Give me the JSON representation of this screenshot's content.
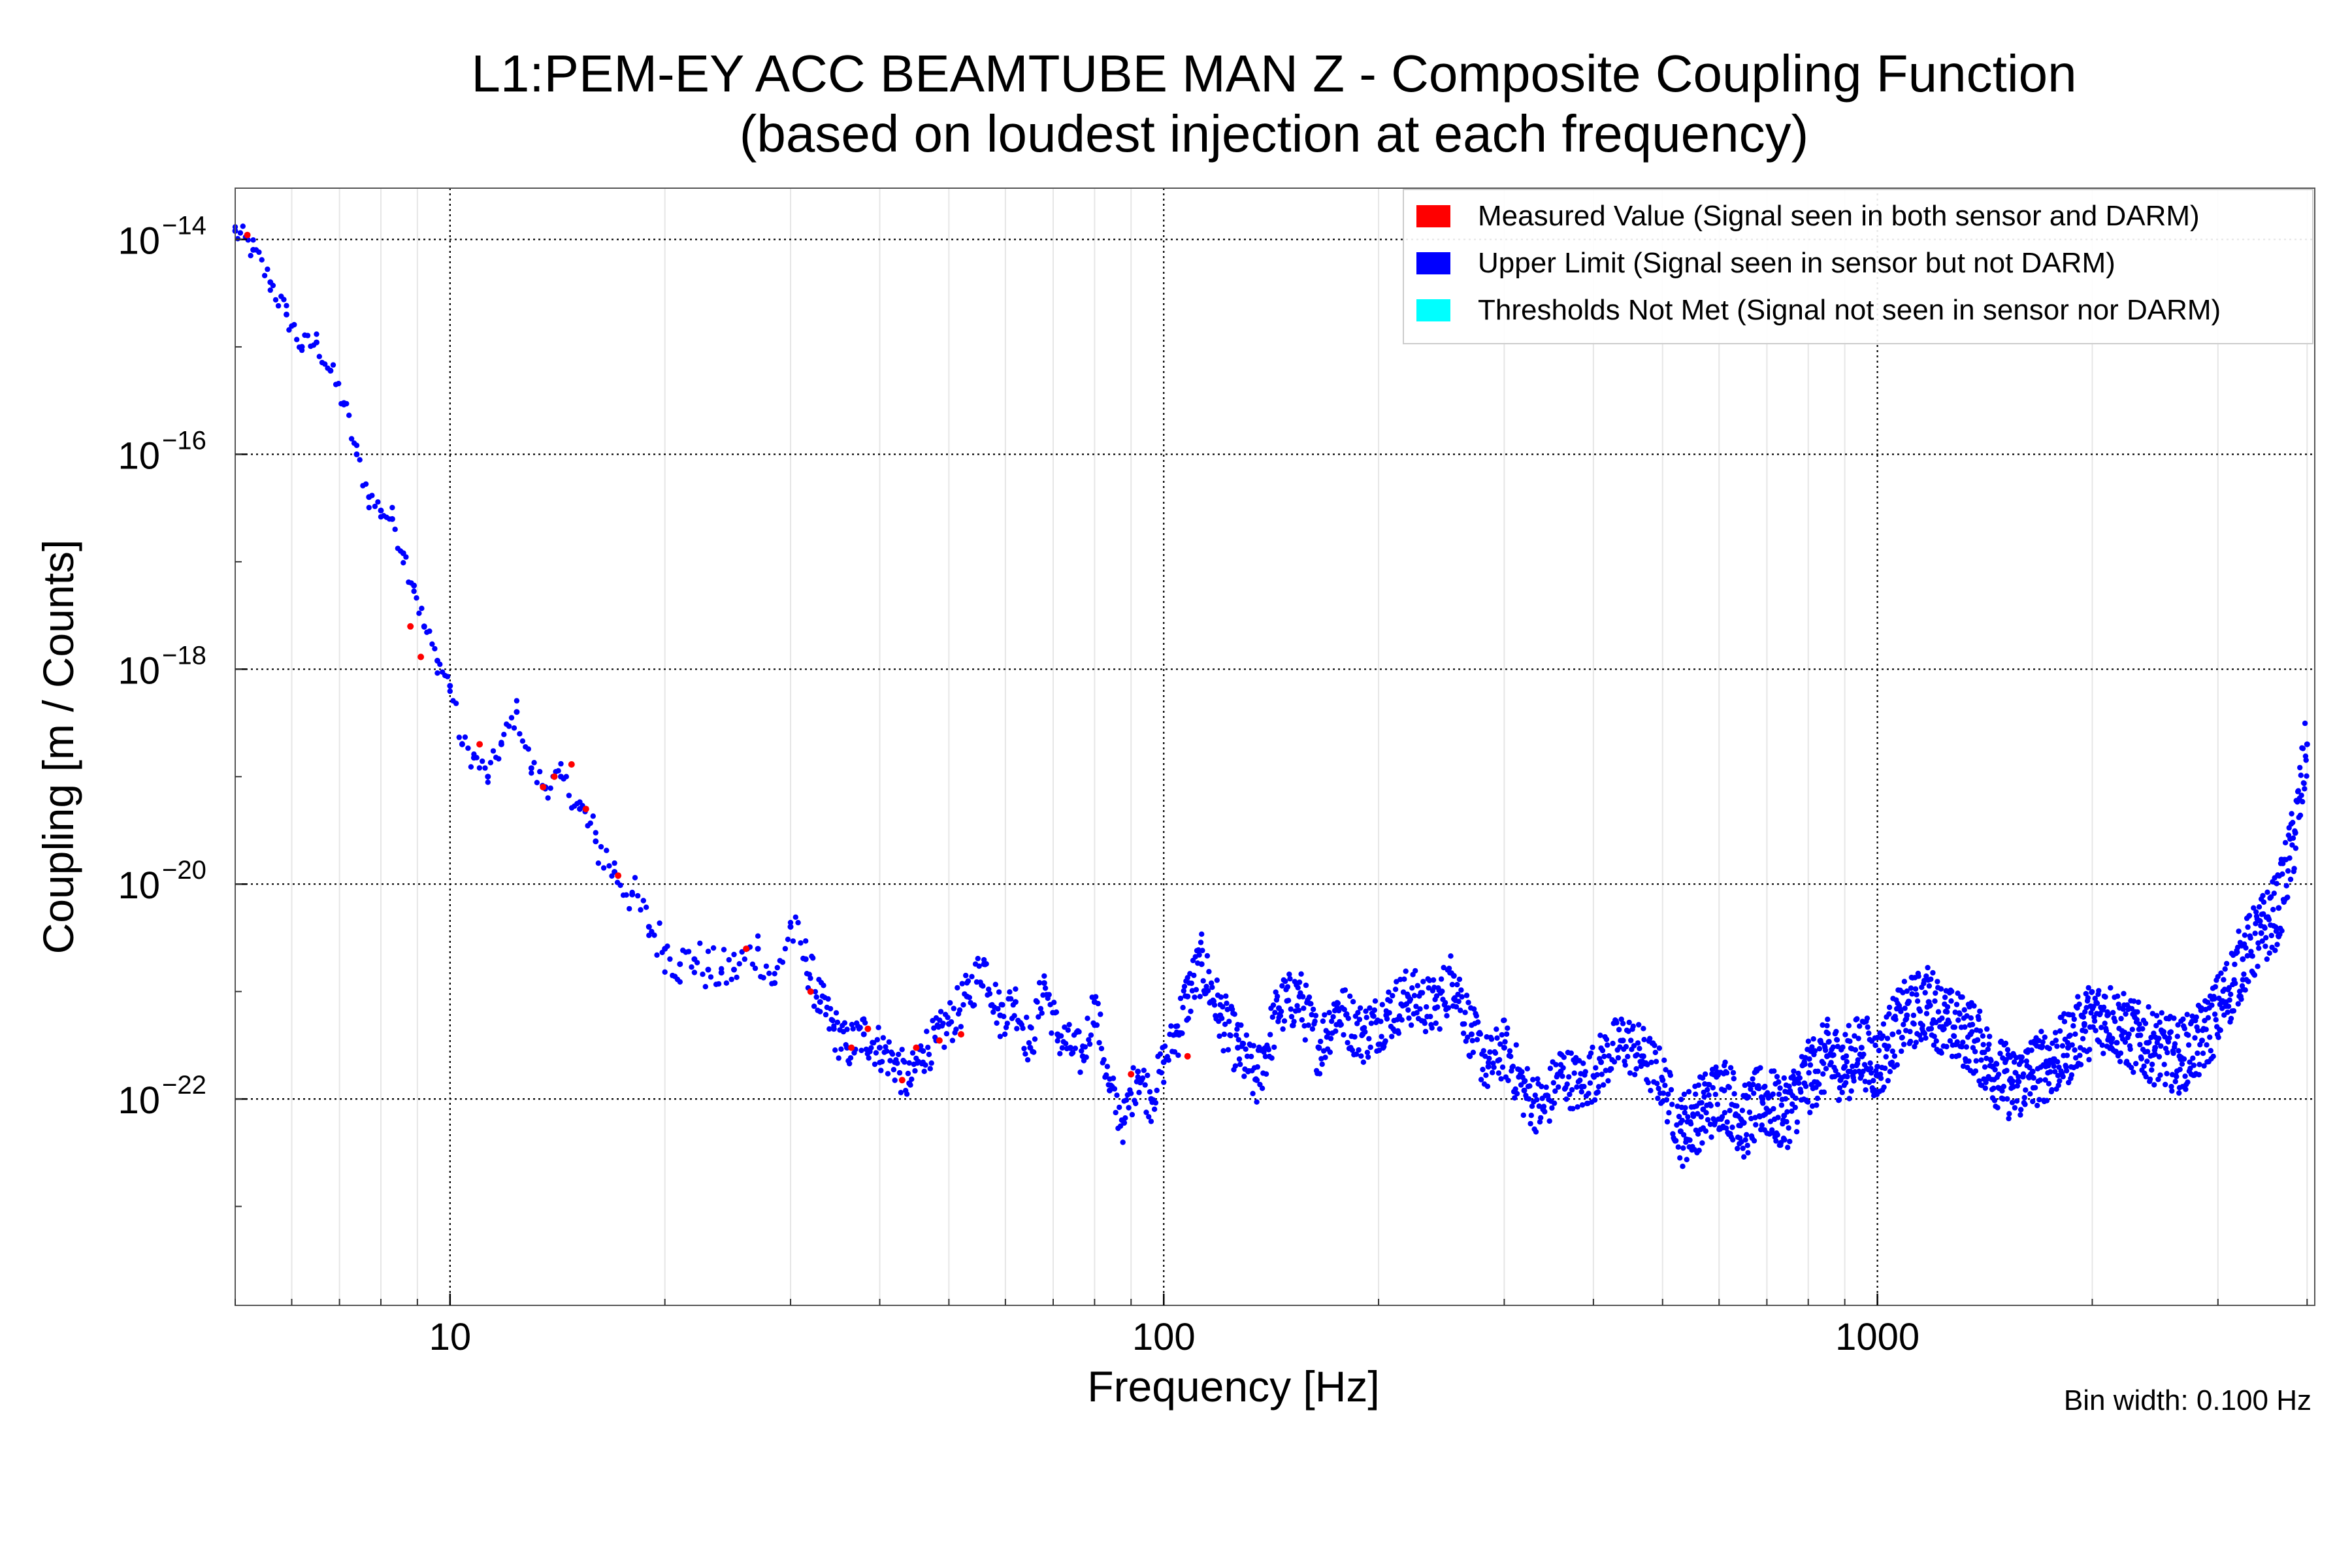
{
  "chart_data": {
    "type": "scatter",
    "title_line1": "L1:PEM-EY ACC BEAMTUBE MAN Z - Composite Coupling Function",
    "title_line2": "(based on loudest injection at each frequency)",
    "xlabel": "Frequency [Hz]",
    "ylabel": "Coupling [m / Counts]",
    "xscale": "log",
    "yscale": "log",
    "xlim": [
      5,
      4100
    ],
    "ylim": [
      1.2e-24,
      3e-14
    ],
    "x_ticks": [
      {
        "value": 10,
        "label": "10"
      },
      {
        "value": 100,
        "label": "100"
      },
      {
        "value": 1000,
        "label": "1000"
      }
    ],
    "y_ticks": [
      {
        "value": 1e-14,
        "base": "10",
        "exp": "−14"
      },
      {
        "value": 1e-16,
        "base": "10",
        "exp": "−16"
      },
      {
        "value": 1e-18,
        "base": "10",
        "exp": "−18"
      },
      {
        "value": 1e-20,
        "base": "10",
        "exp": "−20"
      },
      {
        "value": 1e-22,
        "base": "10",
        "exp": "−22"
      }
    ],
    "grid": true,
    "legend_position": "top-right",
    "legend": [
      {
        "label": "Measured Value (Signal seen in both sensor and DARM)",
        "color": "#ff0000"
      },
      {
        "label": "Upper Limit (Signal seen in sensor but not DARM)",
        "color": "#0000ff"
      },
      {
        "label": "Thresholds Not Met (Signal not seen in sensor nor DARM)",
        "color": "#00ffff"
      }
    ],
    "annotation": "Bin width: 0.100 Hz",
    "series": [
      {
        "name": "Upper Limit",
        "color": "#0000ff",
        "points": [
          [
            5.0,
            1.2e-14
          ],
          [
            5.3,
            8e-15
          ],
          [
            5.6,
            4e-15
          ],
          [
            5.9,
            2e-15
          ],
          [
            6.2,
            1e-15
          ],
          [
            6.5,
            1.1e-15
          ],
          [
            6.8,
            6e-16
          ],
          [
            7.1,
            3e-16
          ],
          [
            7.4,
            1e-16
          ],
          [
            7.7,
            4e-17
          ],
          [
            8.0,
            3e-17
          ],
          [
            8.3,
            2.5e-17
          ],
          [
            8.6,
            1.2e-17
          ],
          [
            8.9,
            6e-18
          ],
          [
            9.2,
            2.5e-18
          ],
          [
            9.6,
            1.2e-18
          ],
          [
            10.0,
            7e-19
          ],
          [
            10.4,
            2e-19
          ],
          [
            10.8,
            1.5e-19
          ],
          [
            11.3,
            1e-19
          ],
          [
            11.8,
            2e-19
          ],
          [
            12.4,
            4e-19
          ],
          [
            13.0,
            1.2e-19
          ],
          [
            13.6,
            8e-20
          ],
          [
            14.3,
            1e-19
          ],
          [
            15.2,
            5e-20
          ],
          [
            16.0,
            2.5e-20
          ],
          [
            17.0,
            1.3e-20
          ],
          [
            18.0,
            8e-21
          ],
          [
            19.0,
            4e-21
          ],
          [
            20.0,
            2.5e-21
          ],
          [
            21.0,
            1.8e-21
          ],
          [
            22.0,
            2e-21
          ],
          [
            23.0,
            1.6e-21
          ],
          [
            24.0,
            1.5e-21
          ],
          [
            25.0,
            1.6e-21
          ],
          [
            27.0,
            2.5e-21
          ],
          [
            28.5,
            1.2e-21
          ],
          [
            30.0,
            4e-21
          ],
          [
            31.5,
            2e-21
          ],
          [
            33.0,
            8e-22
          ],
          [
            34.5,
            4.5e-22
          ],
          [
            36.0,
            3e-22
          ],
          [
            38.0,
            4e-22
          ],
          [
            40.0,
            3e-22
          ],
          [
            42.0,
            2.2e-22
          ],
          [
            44.0,
            1.4e-22
          ],
          [
            46.0,
            2.8e-22
          ],
          [
            48.0,
            3.5e-22
          ],
          [
            50.0,
            5e-22
          ],
          [
            53.0,
            9e-22
          ],
          [
            56.0,
            1.8e-21
          ],
          [
            59.0,
            6e-22
          ],
          [
            62.0,
            8e-22
          ],
          [
            65.0,
            3e-22
          ],
          [
            68.0,
            1.2e-21
          ],
          [
            71.0,
            4e-22
          ],
          [
            74.0,
            3e-22
          ],
          [
            77.0,
            2.5e-22
          ],
          [
            80.0,
            8e-22
          ],
          [
            84.0,
            1.2e-22
          ],
          [
            88.0,
            6e-23
          ],
          [
            92.0,
            1.8e-22
          ],
          [
            96.0,
            1e-22
          ],
          [
            100.0,
            2.2e-22
          ],
          [
            104.0,
            4e-22
          ],
          [
            108.0,
            9e-22
          ],
          [
            113.0,
            1.8e-21
          ],
          [
            120.0,
            6e-22
          ],
          [
            127.0,
            3e-22
          ],
          [
            135.0,
            1.5e-22
          ],
          [
            145.0,
            7e-22
          ],
          [
            155.0,
            9e-22
          ],
          [
            165.0,
            3e-22
          ],
          [
            175.0,
            7e-22
          ],
          [
            190.0,
            4e-22
          ],
          [
            205.0,
            6e-22
          ],
          [
            220.0,
            9e-22
          ],
          [
            240.0,
            7e-22
          ],
          [
            255.0,
            1.4e-21
          ],
          [
            270.0,
            4e-22
          ],
          [
            285.0,
            2e-22
          ],
          [
            300.0,
            3e-22
          ],
          [
            320.0,
            1.2e-22
          ],
          [
            340.0,
            8e-23
          ],
          [
            360.0,
            1.8e-22
          ],
          [
            385.0,
            1.3e-22
          ],
          [
            410.0,
            2.2e-22
          ],
          [
            440.0,
            3.5e-22
          ],
          [
            470.0,
            2.5e-22
          ],
          [
            500.0,
            1.5e-22
          ],
          [
            530.0,
            5e-23
          ],
          [
            570.0,
            8e-23
          ],
          [
            610.0,
            1.2e-22
          ],
          [
            650.0,
            6e-23
          ],
          [
            690.0,
            1e-22
          ],
          [
            740.0,
            7e-23
          ],
          [
            790.0,
            1.4e-22
          ],
          [
            850.0,
            2.5e-22
          ],
          [
            900.0,
            2e-22
          ],
          [
            950.0,
            3e-22
          ],
          [
            1000.0,
            2e-22
          ],
          [
            1050.0,
            4e-22
          ],
          [
            1100.0,
            6e-22
          ],
          [
            1180.0,
            8e-22
          ],
          [
            1250.0,
            5e-22
          ],
          [
            1350.0,
            4e-22
          ],
          [
            1450.0,
            2e-22
          ],
          [
            1550.0,
            1.3e-22
          ],
          [
            1650.0,
            1.8e-22
          ],
          [
            1750.0,
            2.2e-22
          ],
          [
            1850.0,
            3e-22
          ],
          [
            1950.0,
            5e-22
          ],
          [
            2100.0,
            6e-22
          ],
          [
            2250.0,
            4e-22
          ],
          [
            2450.0,
            3e-22
          ],
          [
            2650.0,
            2.5e-22
          ],
          [
            2850.0,
            3.5e-22
          ],
          [
            3050.0,
            8e-22
          ],
          [
            3250.0,
            2e-21
          ],
          [
            3450.0,
            3.5e-21
          ],
          [
            3650.0,
            6e-21
          ],
          [
            3850.0,
            3e-20
          ],
          [
            4000.0,
            2e-19
          ]
        ]
      },
      {
        "name": "Measured Value",
        "color": "#ff0000",
        "points": [
          [
            5.2,
            1.1e-14
          ],
          [
            8.8,
            2.5e-18
          ],
          [
            9.1,
            1.3e-18
          ],
          [
            11.0,
            2e-19
          ],
          [
            13.5,
            8e-20
          ],
          [
            14.0,
            1e-19
          ],
          [
            14.8,
            1.3e-19
          ],
          [
            15.5,
            5e-20
          ],
          [
            17.2,
            1.2e-20
          ],
          [
            26.0,
            2.5e-21
          ],
          [
            32.0,
            1e-21
          ],
          [
            36.5,
            3e-22
          ],
          [
            38.5,
            4.5e-22
          ],
          [
            43.0,
            1.5e-22
          ],
          [
            45.0,
            3e-22
          ],
          [
            48.5,
            3.5e-22
          ],
          [
            52.0,
            4e-22
          ],
          [
            90.0,
            1.7e-22
          ],
          [
            108.0,
            2.5e-22
          ]
        ]
      }
    ]
  }
}
